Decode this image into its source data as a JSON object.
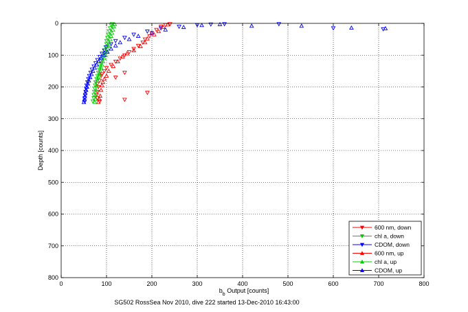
{
  "chart_data": {
    "type": "scatter",
    "xlabel_main": "b",
    "xlabel_sub": "b",
    "xlabel_rest": " Output [counts]",
    "ylabel": "Depth [counts]",
    "caption": "SG502 RossSea Nov 2010, dive 222 started 13-Dec-2010 16:43:00",
    "xlim": [
      0,
      800
    ],
    "ylim": [
      800,
      0
    ],
    "x_ticks": [
      0,
      100,
      200,
      300,
      400,
      500,
      600,
      700,
      800
    ],
    "y_ticks": [
      0,
      100,
      200,
      300,
      400,
      500,
      600,
      700,
      800
    ],
    "x_tick_labels": [
      "0",
      "100",
      "200",
      "300",
      "400",
      "500",
      "600",
      "700",
      "800"
    ],
    "y_tick_labels": [
      "0",
      "100",
      "200",
      "300",
      "400",
      "500",
      "600",
      "700",
      "800"
    ],
    "grid": true,
    "legend_position": "bottom-right",
    "series": [
      {
        "name": "600 nm, down",
        "color": "#ff0000",
        "marker": "triangle-down",
        "points": [
          [
            85,
            245
          ],
          [
            80,
            235
          ],
          [
            140,
            240
          ],
          [
            78,
            225
          ],
          [
            190,
            218
          ],
          [
            80,
            215
          ],
          [
            82,
            200
          ],
          [
            80,
            190
          ],
          [
            85,
            180
          ],
          [
            120,
            170
          ],
          [
            88,
            165
          ],
          [
            90,
            160
          ],
          [
            95,
            150
          ],
          [
            140,
            155
          ],
          [
            100,
            140
          ],
          [
            110,
            130
          ],
          [
            120,
            120
          ],
          [
            130,
            110
          ],
          [
            140,
            100
          ],
          [
            150,
            90
          ],
          [
            160,
            80
          ],
          [
            170,
            70
          ],
          [
            180,
            60
          ],
          [
            185,
            50
          ],
          [
            195,
            40
          ],
          [
            200,
            30
          ],
          [
            210,
            20
          ],
          [
            220,
            10
          ],
          [
            230,
            5
          ],
          [
            240,
            2
          ]
        ]
      },
      {
        "name": "chl a, down",
        "color": "#00cc00",
        "marker": "triangle-down",
        "points": [
          [
            70,
            245
          ],
          [
            72,
            235
          ],
          [
            72,
            225
          ],
          [
            73,
            215
          ],
          [
            74,
            205
          ],
          [
            75,
            195
          ],
          [
            76,
            185
          ],
          [
            78,
            175
          ],
          [
            80,
            165
          ],
          [
            82,
            155
          ],
          [
            84,
            145
          ],
          [
            86,
            135
          ],
          [
            88,
            125
          ],
          [
            90,
            115
          ],
          [
            92,
            105
          ],
          [
            94,
            95
          ],
          [
            96,
            85
          ],
          [
            98,
            75
          ],
          [
            100,
            65
          ],
          [
            100,
            55
          ],
          [
            102,
            45
          ],
          [
            104,
            35
          ],
          [
            106,
            25
          ],
          [
            108,
            15
          ],
          [
            110,
            5
          ],
          [
            112,
            2
          ]
        ]
      },
      {
        "name": "CDOM, down",
        "color": "#0000ff",
        "marker": "triangle-down",
        "points": [
          [
            52,
            245
          ],
          [
            52,
            235
          ],
          [
            53,
            225
          ],
          [
            54,
            215
          ],
          [
            55,
            205
          ],
          [
            56,
            195
          ],
          [
            58,
            185
          ],
          [
            60,
            175
          ],
          [
            62,
            165
          ],
          [
            65,
            155
          ],
          [
            68,
            145
          ],
          [
            72,
            135
          ],
          [
            76,
            125
          ],
          [
            80,
            115
          ],
          [
            85,
            105
          ],
          [
            90,
            95
          ],
          [
            95,
            85
          ],
          [
            100,
            75
          ],
          [
            110,
            65
          ],
          [
            120,
            55
          ],
          [
            140,
            45
          ],
          [
            160,
            35
          ],
          [
            190,
            25
          ],
          [
            220,
            15
          ],
          [
            260,
            10
          ],
          [
            300,
            5
          ],
          [
            330,
            3
          ],
          [
            360,
            2
          ],
          [
            480,
            2
          ],
          [
            600,
            15
          ],
          [
            710,
            18
          ]
        ]
      },
      {
        "name": "600 nm, up",
        "color": "#ff0000",
        "marker": "triangle-up",
        "points": [
          [
            82,
            248
          ],
          [
            84,
            238
          ],
          [
            86,
            228
          ],
          [
            88,
            210
          ],
          [
            90,
            195
          ],
          [
            92,
            185
          ],
          [
            95,
            175
          ],
          [
            100,
            165
          ],
          [
            105,
            150
          ],
          [
            115,
            135
          ],
          [
            125,
            120
          ],
          [
            135,
            105
          ],
          [
            145,
            95
          ],
          [
            160,
            85
          ],
          [
            175,
            72
          ],
          [
            185,
            60
          ],
          [
            190,
            48
          ],
          [
            205,
            35
          ],
          [
            215,
            25
          ],
          [
            225,
            12
          ],
          [
            235,
            4
          ]
        ]
      },
      {
        "name": "chl a, up",
        "color": "#00cc00",
        "marker": "triangle-up",
        "points": [
          [
            74,
            248
          ],
          [
            75,
            238
          ],
          [
            76,
            225
          ],
          [
            77,
            210
          ],
          [
            78,
            195
          ],
          [
            80,
            180
          ],
          [
            82,
            170
          ],
          [
            84,
            160
          ],
          [
            86,
            150
          ],
          [
            88,
            140
          ],
          [
            90,
            130
          ],
          [
            92,
            120
          ],
          [
            95,
            110
          ],
          [
            98,
            100
          ],
          [
            100,
            90
          ],
          [
            102,
            80
          ],
          [
            104,
            70
          ],
          [
            106,
            60
          ],
          [
            108,
            50
          ],
          [
            110,
            40
          ],
          [
            112,
            30
          ],
          [
            114,
            20
          ],
          [
            116,
            10
          ],
          [
            118,
            3
          ]
        ]
      },
      {
        "name": "CDOM, up",
        "color": "#0000ff",
        "marker": "triangle-up",
        "points": [
          [
            50,
            248
          ],
          [
            51,
            240
          ],
          [
            52,
            230
          ],
          [
            53,
            220
          ],
          [
            55,
            210
          ],
          [
            57,
            200
          ],
          [
            59,
            190
          ],
          [
            61,
            180
          ],
          [
            64,
            170
          ],
          [
            67,
            160
          ],
          [
            70,
            150
          ],
          [
            74,
            140
          ],
          [
            78,
            130
          ],
          [
            83,
            120
          ],
          [
            88,
            110
          ],
          [
            95,
            100
          ],
          [
            102,
            90
          ],
          [
            110,
            80
          ],
          [
            120,
            70
          ],
          [
            130,
            60
          ],
          [
            150,
            50
          ],
          [
            170,
            40
          ],
          [
            200,
            30
          ],
          [
            230,
            20
          ],
          [
            270,
            12
          ],
          [
            310,
            6
          ],
          [
            350,
            3
          ],
          [
            420,
            8
          ],
          [
            530,
            8
          ],
          [
            640,
            14
          ],
          [
            715,
            16
          ]
        ]
      }
    ]
  }
}
